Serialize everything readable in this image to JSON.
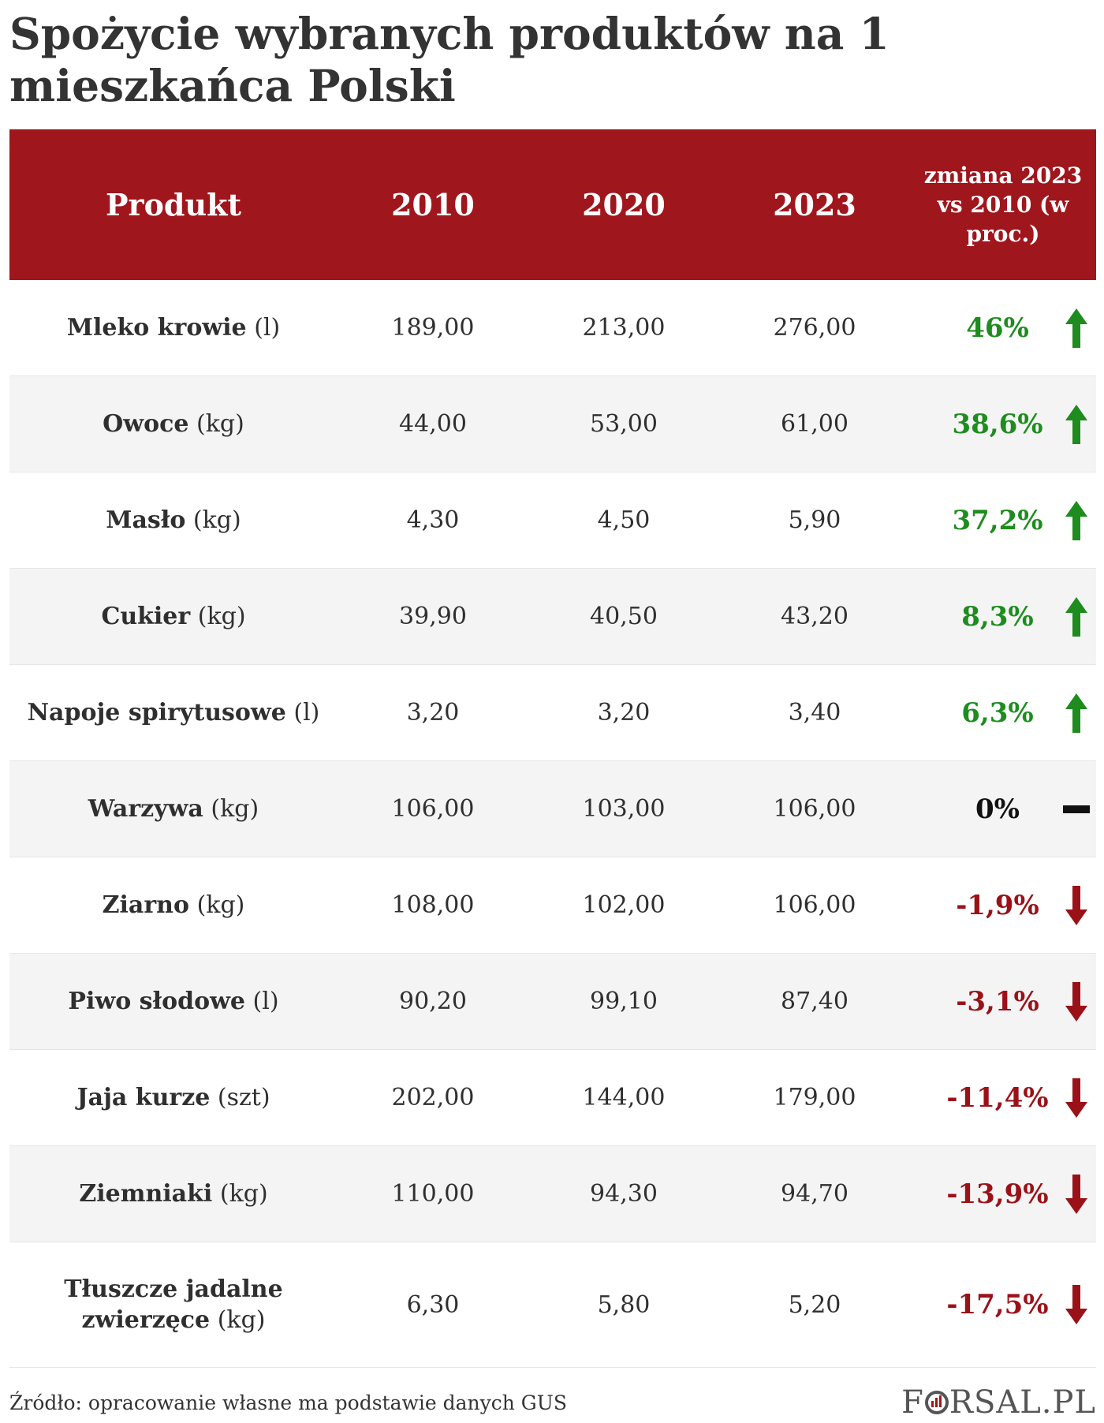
{
  "title": "Spożycie wybranych produktów na 1 mieszkańca Polski",
  "headers": {
    "product": "Produkt",
    "y2010": "2010",
    "y2020": "2020",
    "y2023": "2023",
    "change": "zmiana 2023 vs 2010 (w proc.)"
  },
  "rows": [
    {
      "name": "Mleko krowie",
      "unit": "(l)",
      "v2010": "189,00",
      "v2020": "213,00",
      "v2023": "276,00",
      "change": "46%",
      "trend": "up"
    },
    {
      "name": "Owoce",
      "unit": "(kg)",
      "v2010": "44,00",
      "v2020": "53,00",
      "v2023": "61,00",
      "change": "38,6%",
      "trend": "up"
    },
    {
      "name": "Masło",
      "unit": "(kg)",
      "v2010": "4,30",
      "v2020": "4,50",
      "v2023": "5,90",
      "change": "37,2%",
      "trend": "up"
    },
    {
      "name": "Cukier",
      "unit": "(kg)",
      "v2010": "39,90",
      "v2020": "40,50",
      "v2023": "43,20",
      "change": "8,3%",
      "trend": "up"
    },
    {
      "name": "Napoje spirytusowe",
      "unit": "(l)",
      "v2010": "3,20",
      "v2020": "3,20",
      "v2023": "3,40",
      "change": "6,3%",
      "trend": "up"
    },
    {
      "name": "Warzywa",
      "unit": "(kg)",
      "v2010": "106,00",
      "v2020": "103,00",
      "v2023": "106,00",
      "change": "0%",
      "trend": "flat"
    },
    {
      "name": "Ziarno",
      "unit": "(kg)",
      "v2010": "108,00",
      "v2020": "102,00",
      "v2023": "106,00",
      "change": "-1,9%",
      "trend": "down"
    },
    {
      "name": "Piwo słodowe",
      "unit": "(l)",
      "v2010": "90,20",
      "v2020": "99,10",
      "v2023": "87,40",
      "change": "-3,1%",
      "trend": "down"
    },
    {
      "name": "Jaja kurze",
      "unit": "(szt)",
      "v2010": "202,00",
      "v2020": "144,00",
      "v2023": "179,00",
      "change": "-11,4%",
      "trend": "down"
    },
    {
      "name": "Ziemniaki",
      "unit": "(kg)",
      "v2010": "110,00",
      "v2020": "94,30",
      "v2023": "94,70",
      "change": "-13,9%",
      "trend": "down"
    },
    {
      "name": "Tłuszcze jadalne zwierzęce",
      "unit": "(kg)",
      "v2010": "6,30",
      "v2020": "5,80",
      "v2023": "5,20",
      "change": "-17,5%",
      "trend": "down"
    }
  ],
  "colors": {
    "header_bg": "#a0161d",
    "up": "#1e8c1e",
    "down": "#9b1118",
    "flat": "#111111"
  },
  "source": "Źródło: opracowanie własne ma podstawie danych GUS",
  "logo": {
    "part1": "F",
    "part2": "RSAL.PL"
  },
  "chart_data": {
    "type": "table",
    "title": "Spożycie wybranych produktów na 1 mieszkańca Polski",
    "columns": [
      "Produkt",
      "2010",
      "2020",
      "2023",
      "zmiana 2023 vs 2010 (w proc.)"
    ],
    "categories": [
      "Mleko krowie (l)",
      "Owoce (kg)",
      "Masło (kg)",
      "Cukier (kg)",
      "Napoje spirytusowe (l)",
      "Warzywa (kg)",
      "Ziarno (kg)",
      "Piwo słodowe (l)",
      "Jaja kurze (szt)",
      "Ziemniaki (kg)",
      "Tłuszcze jadalne zwierzęce (kg)"
    ],
    "series": [
      {
        "name": "2010",
        "values": [
          189.0,
          44.0,
          4.3,
          39.9,
          3.2,
          106.0,
          108.0,
          90.2,
          202.0,
          110.0,
          6.3
        ]
      },
      {
        "name": "2020",
        "values": [
          213.0,
          53.0,
          4.5,
          40.5,
          3.2,
          103.0,
          102.0,
          99.1,
          144.0,
          94.3,
          5.8
        ]
      },
      {
        "name": "2023",
        "values": [
          276.0,
          61.0,
          5.9,
          43.2,
          3.4,
          106.0,
          106.0,
          87.4,
          179.0,
          94.7,
          5.2
        ]
      },
      {
        "name": "zmiana 2023 vs 2010 (w proc.)",
        "values": [
          46,
          38.6,
          37.2,
          8.3,
          6.3,
          0,
          -1.9,
          -3.1,
          -11.4,
          -13.9,
          -17.5
        ]
      }
    ]
  }
}
